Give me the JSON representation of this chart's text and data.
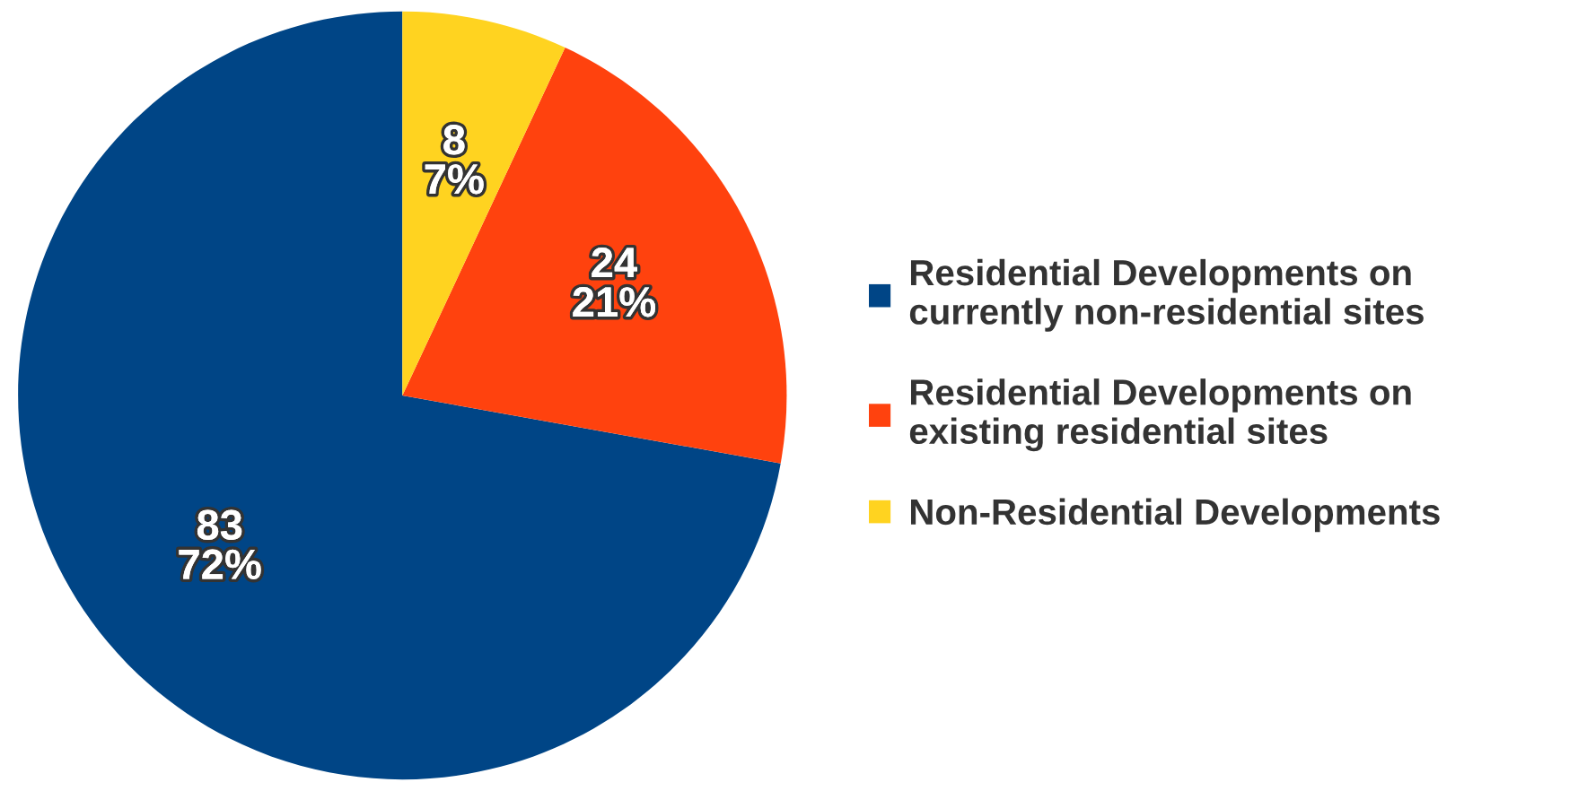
{
  "chart_data": {
    "type": "pie",
    "categories": [
      "Residential Developments on\ncurrently non-residential sites",
      "Residential Developments on\nexisting residential sites",
      "Non-Residential Developments"
    ],
    "values": [
      83,
      24,
      8
    ],
    "colors": [
      "#004586",
      "#ff420e",
      "#ffd320"
    ],
    "value_labels": [
      "83\n72%",
      "24\n21%",
      "8\n7%"
    ],
    "legend": "right"
  }
}
